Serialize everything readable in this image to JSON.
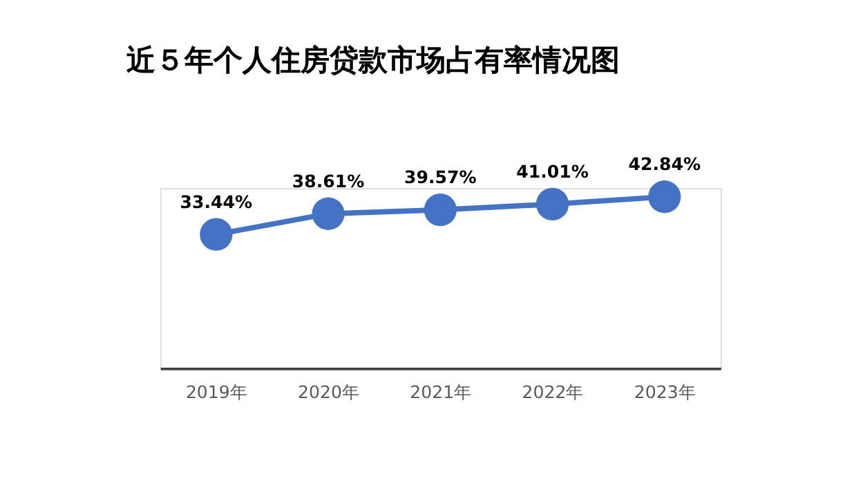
{
  "chart_data": {
    "type": "line",
    "title": "近５年个人住房贷款市场占有率情况图",
    "categories": [
      "2019年",
      "2020年",
      "2021年",
      "2022年",
      "2023年"
    ],
    "series": [
      {
        "color": "#4472c4",
        "values": [
          33.44,
          38.61,
          39.57,
          41.01,
          42.84
        ],
        "value_labels": [
          "33.44%",
          "38.61%",
          "39.57%",
          "41.01%",
          "42.84%"
        ]
      }
    ],
    "ylim": [
      0,
      45
    ],
    "tick_labels": "x",
    "marker": "circle",
    "line_style": "solid"
  }
}
